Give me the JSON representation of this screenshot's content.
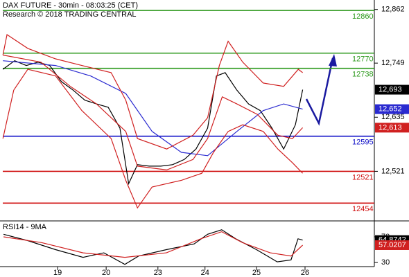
{
  "chart_data": [
    {
      "type": "line",
      "title": "DAX FUTURE - 30min - 08:03:25 (CET)",
      "subtitle": "Research © 2018 TRADING CENTRAL",
      "xlim": [
        0,
        128
      ],
      "ylim": [
        12418,
        12882
      ],
      "yticks": [
        {
          "value": 12862,
          "label": "12,862"
        },
        {
          "value": 12749,
          "label": "12,749"
        },
        {
          "value": 12635,
          "label": "12,635"
        },
        {
          "value": 12521,
          "label": "12,521"
        }
      ],
      "levels": [
        {
          "value": 12860,
          "color": "#2e9a1e"
        },
        {
          "value": 12770,
          "color": "#2e9a1e"
        },
        {
          "value": 12738,
          "color": "#2e9a1e"
        },
        {
          "value": 12595,
          "color": "#1010c8"
        },
        {
          "value": 12521,
          "color": "#d01010"
        },
        {
          "value": 12454,
          "color": "#d01010"
        }
      ],
      "series": [
        {
          "color": "#000000",
          "x": [
            1,
            5,
            9,
            13,
            17,
            21,
            25,
            29,
            33,
            37,
            41,
            44,
            47,
            51,
            55,
            59,
            63,
            67,
            71,
            74,
            77,
            81,
            85,
            89,
            93,
            97,
            101,
            103.5
          ],
          "values": [
            12736,
            12754,
            12744,
            12751,
            12744,
            12710,
            12692,
            12671,
            12663,
            12656,
            12612,
            12495,
            12535,
            12532,
            12532,
            12535,
            12546,
            12568,
            12612,
            12722,
            12729,
            12692,
            12663,
            12649,
            12612,
            12568,
            12619,
            12693
          ],
          "last_label": {
            "value": 12693,
            "label": "12,693"
          }
        },
        {
          "color": "#2a2ad0",
          "x": [
            1,
            19,
            31,
            43,
            52,
            62,
            71,
            81,
            90,
            97,
            103.5
          ],
          "values": [
            12754,
            12744,
            12722,
            12685,
            12605,
            12561,
            12554,
            12605,
            12649,
            12663,
            12652
          ],
          "last_label": {
            "value": 12652,
            "label": "12,652"
          }
        },
        {
          "color": "#d02020",
          "x": [
            1,
            14,
            24,
            33,
            43,
            47,
            57,
            66,
            71,
            76,
            81,
            88,
            95,
            100,
            103.5
          ],
          "values": [
            12766,
            12751,
            12700,
            12663,
            12605,
            12532,
            12524,
            12546,
            12590,
            12678,
            12663,
            12641,
            12597,
            12590,
            12613
          ],
          "last_label": {
            "value": 12613,
            "label": "12,613"
          }
        },
        {
          "color": "#d02020",
          "x": [
            1,
            2.4,
            9.5,
            19,
            28,
            38,
            43,
            47,
            57,
            66,
            71,
            75,
            78,
            83,
            90,
            97,
            102,
            103.5
          ],
          "values": [
            12766,
            12809,
            12780,
            12758,
            12744,
            12729,
            12671,
            12590,
            12568,
            12597,
            12634,
            12744,
            12795,
            12751,
            12707,
            12700,
            12736,
            12729
          ]
        },
        {
          "color": "#d02020",
          "x": [
            1,
            4.7,
            9.5,
            19,
            28,
            38,
            43,
            47,
            52,
            62,
            69,
            73,
            78,
            83,
            90,
            95,
            100,
            103.5
          ],
          "values": [
            12590,
            12692,
            12736,
            12722,
            12649,
            12590,
            12502,
            12444,
            12488,
            12502,
            12517,
            12561,
            12605,
            12619,
            12605,
            12568,
            12539,
            12517
          ]
        }
      ]
    },
    {
      "type": "line",
      "title": "RSI14 - 9MA",
      "xlim": [
        0,
        128
      ],
      "ylim": [
        23.5,
        91.6
      ],
      "yticks": [
        70,
        30
      ],
      "xticks": [
        {
          "value": 19.7,
          "label": "19"
        },
        {
          "value": 36.3,
          "label": "20"
        },
        {
          "value": 54,
          "label": "23"
        },
        {
          "value": 70.1,
          "label": "24"
        },
        {
          "value": 87.7,
          "label": "25"
        },
        {
          "value": 104.3,
          "label": "26"
        }
      ],
      "series": [
        {
          "color": "#000000",
          "x": [
            1.2,
            9.5,
            19,
            28.4,
            35.5,
            42.7,
            47.4,
            56.9,
            66.4,
            71,
            75.8,
            80.6,
            87.7,
            94.8,
            99.5,
            101.9,
            103.5
          ],
          "values": [
            74,
            64,
            50,
            38,
            45,
            27,
            40,
            50,
            59,
            74,
            81,
            67,
            50,
            31,
            34,
            67,
            64.8742
          ],
          "last_label": 64.8742
        },
        {
          "color": "#d02020",
          "x": [
            1.2,
            14.2,
            28.4,
            42.7,
            56.9,
            68.7,
            75.8,
            82.9,
            92.4,
            99.5,
            103.5
          ],
          "values": [
            70,
            61,
            45,
            38,
            45,
            67,
            78,
            61,
            45,
            40,
            57.0207
          ],
          "last_label": 57.0207
        }
      ]
    }
  ]
}
